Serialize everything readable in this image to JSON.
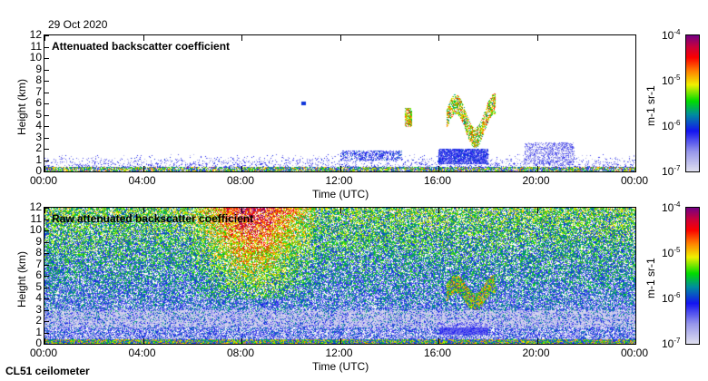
{
  "date": "29 Oct 2020",
  "footer": "CL51 ceilometer",
  "chart_data": [
    {
      "type": "heatmap",
      "title": "Attenuated backscatter coefficient",
      "xlabel": "Time (UTC)",
      "ylabel": "Height (km)",
      "xticks": [
        "00:00",
        "04:00",
        "08:00",
        "12:00",
        "16:00",
        "20:00",
        "00:00"
      ],
      "yticks": [
        "0",
        "1",
        "2",
        "3",
        "4",
        "5",
        "6",
        "7",
        "8",
        "9",
        "10",
        "11",
        "12"
      ],
      "xlim_hours": [
        0,
        24
      ],
      "ylim_km": [
        0,
        12
      ],
      "colorbar": {
        "label": "m-1 sr-1",
        "ticks": [
          "10-7",
          "10-6",
          "10-5",
          "10-4"
        ],
        "range": [
          1e-07,
          0.0001
        ],
        "scale": "log"
      },
      "features": [
        {
          "name": "surface layer",
          "t": [
            0,
            24
          ],
          "h": [
            0,
            0.5
          ],
          "level": -5.5
        },
        {
          "name": "boundary layer",
          "t": [
            0,
            24
          ],
          "h": [
            0.3,
            1.6
          ],
          "level": -6.3
        },
        {
          "name": "low cloud",
          "t": [
            12,
            14.5
          ],
          "h": [
            1.0,
            1.9
          ],
          "level": -6.2
        },
        {
          "name": "mid cloud",
          "t": [
            14.6,
            14.9
          ],
          "h": [
            4.0,
            5.5
          ],
          "level": -5.2
        },
        {
          "name": "low cloud",
          "t": [
            16.0,
            18.0
          ],
          "h": [
            0.7,
            2.0
          ],
          "level": -6.1
        },
        {
          "name": "mid cloud",
          "t": [
            16.4,
            18.3
          ],
          "h": [
            3.5,
            6.5
          ],
          "level": -5.1
        },
        {
          "name": "low cloud",
          "t": [
            19.5,
            21.5
          ],
          "h": [
            0.6,
            2.6
          ],
          "level": -6.4
        }
      ]
    },
    {
      "type": "heatmap",
      "title": "Raw attenuated backscatter coefficient",
      "xlabel": "Time (UTC)",
      "ylabel": "Height (km)",
      "xticks": [
        "00:00",
        "04:00",
        "08:00",
        "12:00",
        "16:00",
        "20:00",
        "00:00"
      ],
      "yticks": [
        "0",
        "1",
        "2",
        "3",
        "4",
        "5",
        "6",
        "7",
        "8",
        "9",
        "10",
        "11",
        "12"
      ],
      "xlim_hours": [
        0,
        24
      ],
      "ylim_km": [
        0,
        12
      ],
      "colorbar": {
        "label": "m-1 sr-1",
        "ticks": [
          "10-7",
          "10-6",
          "10-5",
          "10-4"
        ],
        "range": [
          1e-07,
          0.0001
        ],
        "scale": "log"
      },
      "features": [
        {
          "name": "noise background",
          "t": [
            0,
            24
          ],
          "h": [
            0,
            12
          ],
          "level": -6.3
        },
        {
          "name": "enhanced noise",
          "t": [
            6,
            11
          ],
          "h": [
            4,
            12
          ],
          "level": -5.5
        },
        {
          "name": "mid cloud",
          "t": [
            16.4,
            18.3
          ],
          "h": [
            3.5,
            6.5
          ],
          "level": -5.1
        }
      ]
    }
  ]
}
